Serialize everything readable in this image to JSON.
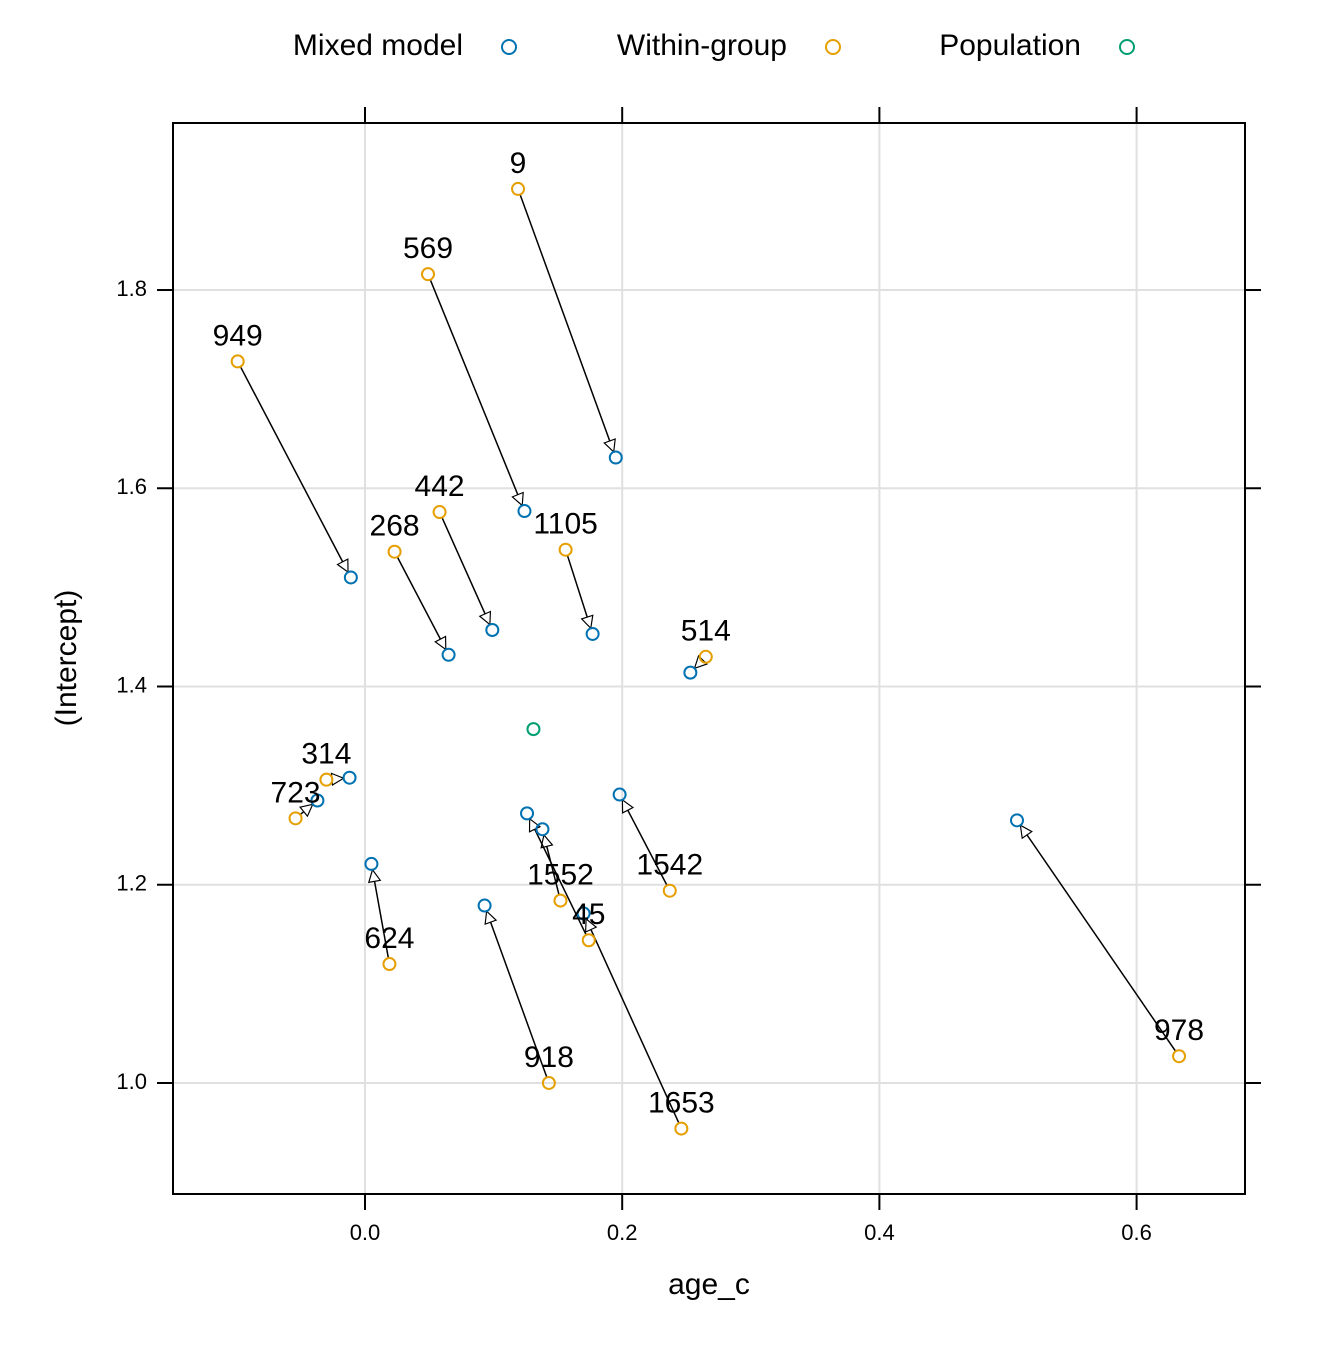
{
  "chart_data": {
    "type": "scatter",
    "xlabel": "age_c",
    "ylabel": "(Intercept)",
    "xlim": [
      -0.1493,
      0.6843
    ],
    "ylim": [
      0.888,
      1.9685
    ],
    "xticks": [
      {
        "value": 0,
        "label": "0.0"
      },
      0.2,
      0.4,
      0.6
    ],
    "yticks": [
      {
        "value": 1,
        "label": "1.0"
      },
      1.2,
      1.4,
      1.6,
      1.8
    ],
    "grid": true,
    "legend": "top",
    "point_labels": [
      "9",
      "569",
      "949",
      "442",
      "268",
      "1105",
      "514",
      "314",
      "723",
      "624",
      "918",
      "1552",
      "45",
      "1653",
      "1542",
      "978"
    ],
    "series": [
      {
        "name": "Mixed model",
        "color": "#0072B2",
        "x": [
          0.195,
          0.124,
          -0.011,
          0.099,
          0.065,
          0.177,
          0.253,
          -0.012,
          -0.037,
          0.005,
          0.093,
          0.138,
          0.126,
          0.17,
          0.198,
          0.507
        ],
        "values": [
          1.631,
          1.577,
          1.51,
          1.457,
          1.432,
          1.453,
          1.414,
          1.308,
          1.285,
          1.221,
          1.179,
          1.256,
          1.272,
          1.171,
          1.291,
          1.265
        ]
      },
      {
        "name": "Within-group",
        "color": "#E69F00",
        "x": [
          0.119,
          0.049,
          -0.099,
          0.058,
          0.023,
          0.156,
          0.265,
          -0.03,
          -0.054,
          0.019,
          0.143,
          0.152,
          0.174,
          0.246,
          0.237,
          0.633
        ],
        "values": [
          1.902,
          1.816,
          1.728,
          1.576,
          1.536,
          1.538,
          1.43,
          1.306,
          1.267,
          1.12,
          1.0,
          1.184,
          1.144,
          0.954,
          1.194,
          1.027
        ]
      },
      {
        "name": "Population",
        "color": "#009E73",
        "x": [
          0.131
        ],
        "values": [
          1.357
        ]
      }
    ]
  }
}
